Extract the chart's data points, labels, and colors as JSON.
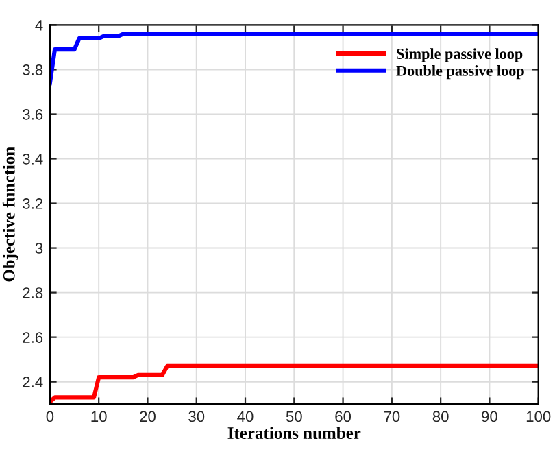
{
  "chart_data": {
    "type": "line",
    "xlabel": "Iterations number",
    "ylabel": "Objective function",
    "series": [
      {
        "name": "Simple passive loop",
        "color": "#ff0000",
        "x": [
          0,
          1,
          9,
          10,
          17,
          18,
          23,
          24,
          30,
          100
        ],
        "values": [
          2.31,
          2.33,
          2.33,
          2.42,
          2.42,
          2.43,
          2.43,
          2.47,
          2.47,
          2.47
        ]
      },
      {
        "name": "Double passive loop",
        "color": "#0000ff",
        "x": [
          0,
          1,
          5,
          6,
          10,
          11,
          14,
          15,
          20,
          100
        ],
        "values": [
          3.74,
          3.89,
          3.89,
          3.94,
          3.94,
          3.95,
          3.95,
          3.96,
          3.96,
          3.96
        ]
      }
    ],
    "xlim": [
      0,
      100
    ],
    "xticks": [
      0,
      10,
      20,
      30,
      40,
      50,
      60,
      70,
      80,
      90,
      100
    ],
    "ylim": [
      2.3,
      4
    ],
    "yticks": [
      2.4,
      2.6,
      2.8,
      3,
      3.2,
      3.4,
      3.6,
      3.8,
      4
    ],
    "grid": true,
    "legend": "top right",
    "line_style": "solid",
    "marker": "none"
  }
}
